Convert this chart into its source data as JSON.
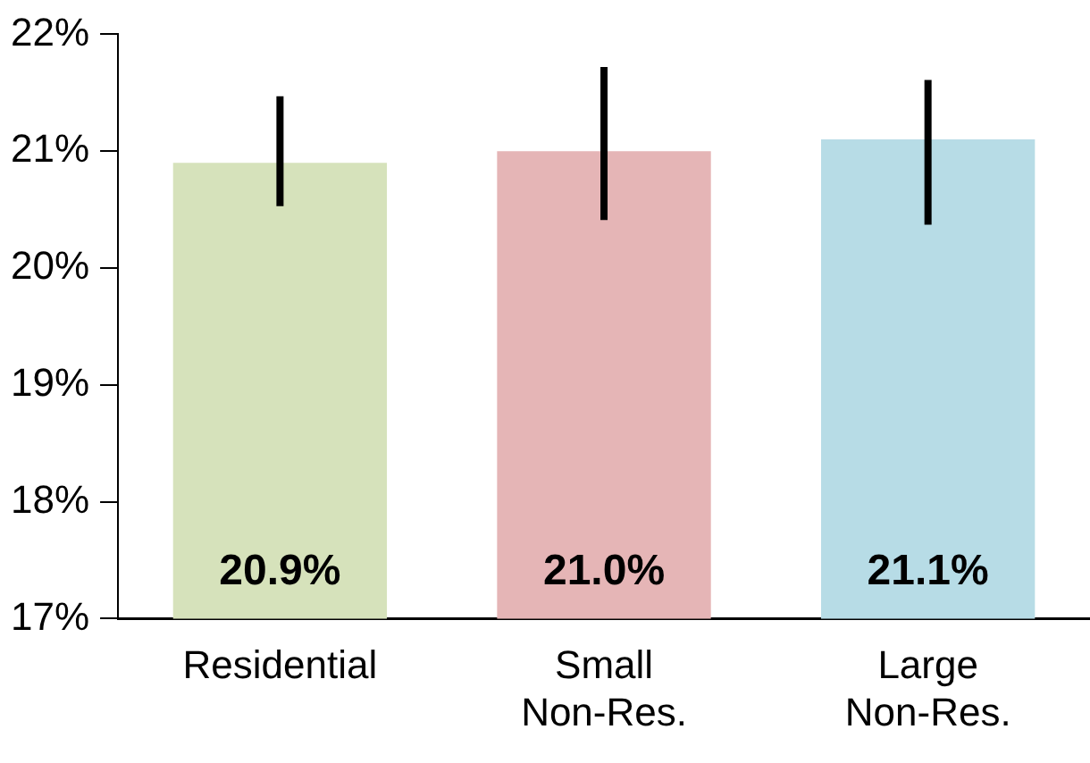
{
  "chart_data": {
    "type": "bar",
    "categories": [
      "Residential",
      "Small Non-Res.",
      "Large Non-Res."
    ],
    "values": [
      20.9,
      21.0,
      21.1
    ],
    "colors": [
      "#d6e2bb",
      "#e5b5b6",
      "#b7dce6"
    ],
    "errors": [
      [
        20.53,
        21.47
      ],
      [
        20.41,
        21.72
      ],
      [
        20.37,
        21.61
      ]
    ],
    "value_labels": [
      "20.9%",
      "21.0%",
      "21.1%"
    ],
    "ylim": [
      17,
      22
    ],
    "yticks": [
      {
        "value": 17,
        "label": "17%"
      },
      {
        "value": 18,
        "label": "18%"
      },
      {
        "value": 19,
        "label": "19%"
      },
      {
        "value": 20,
        "label": "20%"
      },
      {
        "value": 21,
        "label": "21%"
      },
      {
        "value": 22,
        "label": "22%"
      }
    ],
    "grid": false,
    "legend": false
  }
}
